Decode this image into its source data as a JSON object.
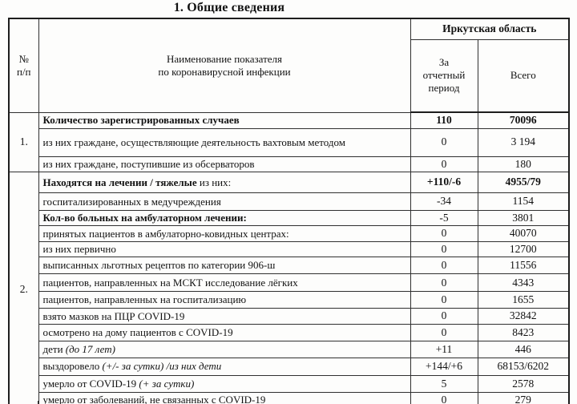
{
  "title": "1. Общие сведения",
  "table": {
    "header": {
      "num": "№\nп/п",
      "name": "Наименование показателя\nпо коронавирусной инфекции",
      "region": "Иркутская область",
      "period": "За\nотчетный\nпериод",
      "total": "Всего"
    },
    "sections": [
      {
        "num": "1.",
        "rows": [
          {
            "parts": [
              {
                "text": "Количество зарегистрированных случаев",
                "bold": true
              }
            ],
            "period": "110",
            "total": "70096",
            "values_bold": true
          },
          {
            "parts": [
              {
                "text": "из них граждане, осуществляющие деятельность вахтовым методом"
              }
            ],
            "period": "0",
            "total": "3 194",
            "justify": true
          },
          {
            "parts": [
              {
                "text": "из них граждане, поступившие из обсерваторов"
              }
            ],
            "period": "0",
            "total": "180"
          }
        ]
      },
      {
        "num": "2.",
        "rows": [
          {
            "parts": [
              {
                "text": "Находятся на лечении / тяжелые ",
                "bold": true
              },
              {
                "text": "из них:"
              }
            ],
            "period": "+110/-6",
            "total": "4955/79",
            "values_bold": true
          },
          {
            "parts": [
              {
                "text": "госпитализированных в медучреждения"
              }
            ],
            "period": "-34",
            "total": "1154"
          },
          {
            "parts": [
              {
                "text": "Кол-во больных на амбулаторном лечении:",
                "bold": true
              }
            ],
            "period": "-5",
            "total": "3801"
          },
          {
            "parts": [
              {
                "text": "принятых пациентов в амбулаторно-ковидных центрах:"
              }
            ],
            "period": "0",
            "total": "40070"
          },
          {
            "parts": [
              {
                "text": "из них первично"
              }
            ],
            "period": "0",
            "total": "12700"
          },
          {
            "parts": [
              {
                "text": "выписанных льготных рецептов по категории 906-ш"
              }
            ],
            "period": "0",
            "total": "11556"
          },
          {
            "parts": [
              {
                "text": "пациентов, направленных на МСКТ исследование лёгких"
              }
            ],
            "period": "0",
            "total": "4343"
          },
          {
            "parts": [
              {
                "text": "пациентов, направленных на госпитализацию"
              }
            ],
            "period": "0",
            "total": "1655"
          },
          {
            "parts": [
              {
                "text": "взято мазков на ПЦР COVID-19"
              }
            ],
            "period": "0",
            "total": "32842"
          },
          {
            "parts": [
              {
                "text": "осмотрено на дому пациентов с COVID-19"
              }
            ],
            "period": "0",
            "total": "8423"
          },
          {
            "parts": [
              {
                "text": "дети "
              },
              {
                "text": "(до 17 лет)",
                "italic": true
              }
            ],
            "period": "+11",
            "total": "446"
          },
          {
            "parts": [
              {
                "text": "выздоровело "
              },
              {
                "text": "(+/- за сутки) /из них дети",
                "italic": true
              }
            ],
            "period": "+144/+6",
            "total": "68153/6202"
          },
          {
            "parts": [
              {
                "text": "умерло от COVID-19 "
              },
              {
                "text": "(+ за сутки)",
                "italic": true
              }
            ],
            "period": "5",
            "total": "2578"
          },
          {
            "parts": [
              {
                "text": "умерло от заболеваний, не связанных с COVID-19"
              }
            ],
            "period": "0",
            "total": "279"
          }
        ]
      }
    ]
  }
}
